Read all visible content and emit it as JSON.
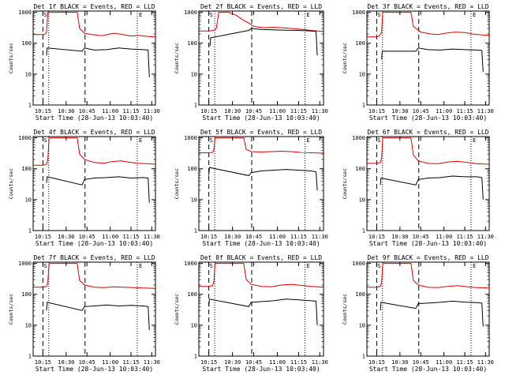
{
  "chart_data": [
    {
      "type": "line",
      "title": "Det 1f BLACK = Events, RED = LLD",
      "xlabel": "Start Time (28-Jun-13 10:03:40)",
      "ylabel": "Counts/sec",
      "yscale": "log",
      "ylim": [
        1,
        1100
      ],
      "xticks": [
        "10:15",
        "10:30",
        "10:45",
        "11:00",
        "11:15",
        "11:30"
      ],
      "yticks": [
        "1",
        "10",
        "100",
        "1000"
      ],
      "markers": {
        "dashed": [
          "10:15",
          "10:44"
        ],
        "dotted": [
          "10:19",
          "11:20"
        ],
        "labels": [
          "S",
          "E"
        ]
      },
      "series": [
        {
          "name": "LLD",
          "color": "#e00000",
          "x": [
            0,
            8,
            10,
            11,
            12,
            13,
            14,
            36,
            38,
            42,
            48,
            56,
            62,
            66,
            72,
            80,
            86,
            94,
            100
          ],
          "values": [
            190,
            190,
            200,
            230,
            1000,
            1000,
            1000,
            1000,
            300,
            210,
            190,
            175,
            195,
            210,
            195,
            170,
            180,
            165,
            160
          ]
        },
        {
          "name": "Events",
          "color": "#000000",
          "x": [
            11,
            11.5,
            40,
            42,
            50,
            60,
            70,
            80,
            90,
            94,
            95
          ],
          "values": [
            40,
            70,
            55,
            70,
            60,
            62,
            70,
            65,
            62,
            60,
            8
          ]
        }
      ]
    },
    {
      "type": "line",
      "title": "Det 2f BLACK = Events, RED = LLD",
      "xlabel": "Start Time (28-Jun-13 10:03:40)",
      "ylabel": "Counts/sec",
      "yscale": "log",
      "ylim": [
        1,
        1100
      ],
      "xticks": [
        "10:15",
        "10:30",
        "10:45",
        "11:00",
        "11:15",
        "11:30"
      ],
      "yticks": [
        "1",
        "10",
        "100",
        "1000"
      ],
      "markers": {
        "dashed": [
          "10:15",
          "10:44"
        ],
        "dotted": [
          "10:19",
          "11:20"
        ],
        "labels": [
          "S",
          "E"
        ]
      },
      "series": [
        {
          "name": "LLD",
          "color": "#e00000",
          "x": [
            0,
            8,
            12,
            14,
            16,
            24,
            30,
            36,
            40,
            44,
            52,
            60,
            70,
            80,
            90,
            100
          ],
          "values": [
            250,
            250,
            260,
            300,
            1000,
            1000,
            800,
            550,
            450,
            350,
            320,
            330,
            310,
            290,
            260,
            240
          ]
        },
        {
          "name": "Events",
          "color": "#000000",
          "x": [
            9,
            9.5,
            40,
            42,
            50,
            60,
            70,
            80,
            90,
            94,
            95
          ],
          "values": [
            80,
            150,
            260,
            300,
            280,
            270,
            265,
            260,
            250,
            240,
            40
          ]
        }
      ]
    },
    {
      "type": "line",
      "title": "Det 3f BLACK = Events, RED = LLD",
      "xlabel": "Start Time (28-Jun-13 10:03:40)",
      "ylabel": "Counts/sec",
      "yscale": "log",
      "ylim": [
        1,
        1100
      ],
      "xticks": [
        "10:15",
        "10:30",
        "10:45",
        "11:00",
        "11:15",
        "11:30"
      ],
      "yticks": [
        "1",
        "10",
        "100",
        "1000"
      ],
      "markers": {
        "dashed": [
          "10:15",
          "10:44"
        ],
        "dotted": [
          "10:19",
          "11:20"
        ],
        "labels": [
          "S",
          "E"
        ]
      },
      "series": [
        {
          "name": "LLD",
          "color": "#e00000",
          "x": [
            0,
            8,
            10,
            12,
            13,
            14,
            36,
            38,
            44,
            52,
            58,
            64,
            72,
            80,
            86,
            94,
            100
          ],
          "values": [
            160,
            160,
            170,
            220,
            1000,
            1000,
            1000,
            350,
            230,
            200,
            190,
            210,
            230,
            220,
            200,
            185,
            180
          ]
        },
        {
          "name": "Events",
          "color": "#000000",
          "x": [
            12,
            12.5,
            40,
            42,
            50,
            60,
            70,
            80,
            90,
            94,
            95
          ],
          "values": [
            30,
            55,
            55,
            70,
            62,
            60,
            65,
            62,
            60,
            58,
            12
          ]
        }
      ]
    },
    {
      "type": "line",
      "title": "Det 4f BLACK = Events, RED = LLD",
      "xlabel": "Start Time (28-Jun-13 10:03:40)",
      "ylabel": "Counts/sec",
      "yscale": "log",
      "ylim": [
        1,
        1100
      ],
      "xticks": [
        "10:15",
        "10:30",
        "10:45",
        "11:00",
        "11:15",
        "11:30"
      ],
      "yticks": [
        "1",
        "10",
        "100",
        "1000"
      ],
      "markers": {
        "dashed": [
          "10:15",
          "10:44"
        ],
        "dotted": [
          "10:19",
          "11:20"
        ],
        "labels": [
          "S",
          "E"
        ]
      },
      "series": [
        {
          "name": "LLD",
          "color": "#e00000",
          "x": [
            0,
            8,
            11,
            12,
            13,
            14,
            36,
            38,
            42,
            50,
            58,
            64,
            72,
            80,
            86,
            94,
            100
          ],
          "values": [
            130,
            130,
            140,
            200,
            1000,
            1000,
            1000,
            300,
            200,
            160,
            150,
            170,
            180,
            160,
            150,
            145,
            140
          ]
        },
        {
          "name": "Events",
          "color": "#000000",
          "x": [
            11,
            11.5,
            40,
            42,
            50,
            60,
            70,
            80,
            90,
            94,
            95
          ],
          "values": [
            35,
            55,
            30,
            45,
            50,
            52,
            55,
            50,
            52,
            50,
            8
          ]
        }
      ]
    },
    {
      "type": "line",
      "title": "Det 5f BLACK = Events, RED = LLD",
      "xlabel": "Start Time (28-Jun-13 10:03:40)",
      "ylabel": "Counts/sec",
      "yscale": "log",
      "ylim": [
        1,
        1100
      ],
      "xticks": [
        "10:15",
        "10:30",
        "10:45",
        "11:00",
        "11:15",
        "11:30"
      ],
      "yticks": [
        "1",
        "10",
        "100",
        "1000"
      ],
      "markers": {
        "dashed": [
          "10:15",
          "10:44"
        ],
        "dotted": [
          "10:19",
          "11:20"
        ],
        "labels": [
          "S",
          "E"
        ]
      },
      "series": [
        {
          "name": "LLD",
          "color": "#e00000",
          "x": [
            0,
            8,
            11,
            12,
            13,
            14,
            36,
            38,
            42,
            50,
            58,
            66,
            74,
            82,
            90,
            100
          ],
          "values": [
            330,
            330,
            340,
            400,
            1000,
            1000,
            1000,
            420,
            360,
            350,
            360,
            370,
            360,
            340,
            330,
            320
          ]
        },
        {
          "name": "Events",
          "color": "#000000",
          "x": [
            8,
            8.5,
            40,
            42,
            50,
            60,
            70,
            80,
            90,
            94,
            95
          ],
          "values": [
            60,
            110,
            60,
            75,
            85,
            90,
            95,
            90,
            85,
            80,
            20
          ]
        }
      ]
    },
    {
      "type": "line",
      "title": "Det 6f BLACK = Events, RED = LLD",
      "xlabel": "Start Time (28-Jun-13 10:03:40)",
      "ylabel": "Counts/sec",
      "yscale": "log",
      "ylim": [
        1,
        1100
      ],
      "xticks": [
        "10:15",
        "10:30",
        "10:45",
        "11:00",
        "11:15",
        "11:30"
      ],
      "yticks": [
        "1",
        "10",
        "100",
        "1000"
      ],
      "markers": {
        "dashed": [
          "10:15",
          "10:44"
        ],
        "dotted": [
          "10:19",
          "11:20"
        ],
        "labels": [
          "S",
          "E"
        ]
      },
      "series": [
        {
          "name": "LLD",
          "color": "#e00000",
          "x": [
            0,
            8,
            11,
            12,
            13,
            14,
            36,
            38,
            42,
            50,
            58,
            66,
            74,
            82,
            90,
            100
          ],
          "values": [
            150,
            150,
            160,
            220,
            1000,
            1000,
            1000,
            280,
            180,
            150,
            145,
            165,
            175,
            160,
            145,
            140
          ]
        },
        {
          "name": "Events",
          "color": "#000000",
          "x": [
            11,
            11.5,
            40,
            42,
            50,
            60,
            70,
            80,
            90,
            94,
            95
          ],
          "values": [
            30,
            50,
            30,
            45,
            50,
            52,
            58,
            55,
            55,
            52,
            10
          ]
        }
      ]
    },
    {
      "type": "line",
      "title": "Det 7f BLACK = Events, RED = LLD",
      "xlabel": "Start Time (28-Jun-13 10:03:40)",
      "ylabel": "Counts/sec",
      "yscale": "log",
      "ylim": [
        1,
        1100
      ],
      "xticks": [
        "10:15",
        "10:30",
        "10:45",
        "11:00",
        "11:15",
        "11:30"
      ],
      "yticks": [
        "1",
        "10",
        "100",
        "1000"
      ],
      "markers": {
        "dashed": [
          "10:15",
          "10:44"
        ],
        "dotted": [
          "10:19",
          "11:20"
        ],
        "labels": [
          "S",
          "E"
        ]
      },
      "series": [
        {
          "name": "LLD",
          "color": "#e00000",
          "x": [
            0,
            8,
            11,
            12,
            13,
            14,
            36,
            38,
            42,
            50,
            58,
            66,
            74,
            82,
            90,
            100
          ],
          "values": [
            170,
            170,
            180,
            240,
            1000,
            1000,
            1000,
            280,
            200,
            170,
            165,
            175,
            170,
            165,
            160,
            155
          ]
        },
        {
          "name": "Events",
          "color": "#000000",
          "x": [
            11,
            11.5,
            40,
            42,
            50,
            60,
            70,
            80,
            90,
            94,
            95
          ],
          "values": [
            30,
            55,
            30,
            40,
            42,
            45,
            42,
            44,
            42,
            40,
            7
          ]
        }
      ]
    },
    {
      "type": "line",
      "title": "Det 8f BLACK = Events, RED = LLD",
      "xlabel": "Start Time (28-Jun-13 10:03:40)",
      "ylabel": "Counts/sec",
      "yscale": "log",
      "ylim": [
        1,
        1100
      ],
      "xticks": [
        "10:15",
        "10:30",
        "10:45",
        "11:00",
        "11:15",
        "11:30"
      ],
      "yticks": [
        "1",
        "10",
        "100",
        "1000"
      ],
      "markers": {
        "dashed": [
          "10:15",
          "10:44"
        ],
        "dotted": [
          "10:19",
          "11:20"
        ],
        "labels": [
          "S",
          "E"
        ]
      },
      "series": [
        {
          "name": "LLD",
          "color": "#e00000",
          "x": [
            0,
            8,
            11,
            12,
            13,
            14,
            36,
            38,
            42,
            50,
            58,
            66,
            74,
            82,
            90,
            100
          ],
          "values": [
            180,
            180,
            190,
            250,
            1000,
            1000,
            1000,
            300,
            210,
            180,
            175,
            200,
            210,
            195,
            180,
            170
          ]
        },
        {
          "name": "Events",
          "color": "#000000",
          "x": [
            8,
            8.5,
            40,
            42,
            50,
            60,
            70,
            80,
            90,
            94,
            95
          ],
          "values": [
            40,
            70,
            40,
            55,
            58,
            62,
            70,
            66,
            62,
            60,
            10
          ]
        }
      ]
    },
    {
      "type": "line",
      "title": "Det 9f BLACK = Events, RED = LLD",
      "xlabel": "Start Time (28-Jun-13 10:03:40)",
      "ylabel": "Counts/sec",
      "yscale": "log",
      "ylim": [
        1,
        1100
      ],
      "xticks": [
        "10:15",
        "10:30",
        "10:45",
        "11:00",
        "11:15",
        "11:30"
      ],
      "yticks": [
        "1",
        "10",
        "100",
        "1000"
      ],
      "markers": {
        "dashed": [
          "10:15",
          "10:44"
        ],
        "dotted": [
          "10:19",
          "11:20"
        ],
        "labels": [
          "S",
          "E"
        ]
      },
      "series": [
        {
          "name": "LLD",
          "color": "#e00000",
          "x": [
            0,
            8,
            11,
            12,
            13,
            14,
            36,
            38,
            42,
            50,
            58,
            66,
            74,
            82,
            90,
            100
          ],
          "values": [
            170,
            170,
            180,
            240,
            1000,
            1000,
            1000,
            280,
            200,
            170,
            165,
            180,
            190,
            175,
            165,
            160
          ]
        },
        {
          "name": "Events",
          "color": "#000000",
          "x": [
            11,
            11.5,
            40,
            42,
            50,
            60,
            70,
            80,
            90,
            94,
            95
          ],
          "values": [
            30,
            55,
            35,
            50,
            52,
            55,
            60,
            56,
            54,
            52,
            9
          ]
        }
      ]
    }
  ]
}
